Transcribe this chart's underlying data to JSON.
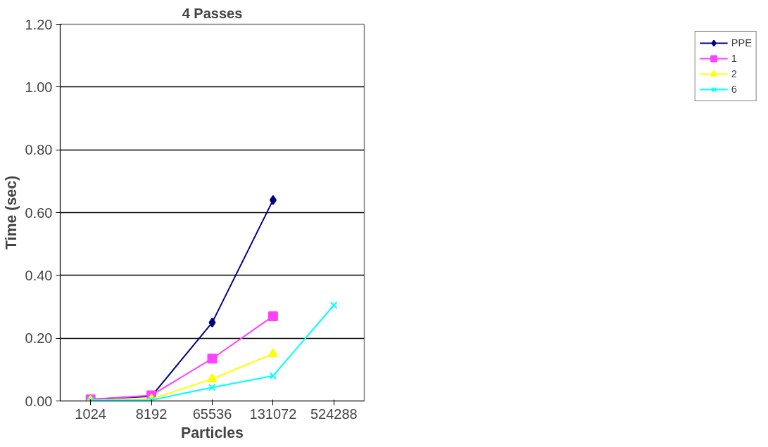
{
  "chart_data": {
    "type": "line",
    "title": "4 Passes",
    "xlabel": "Particles",
    "ylabel": "Time (sec)",
    "categories": [
      "1024",
      "8192",
      "65536",
      "131072",
      "524288"
    ],
    "series": [
      {
        "name": "PPE",
        "color": "#000080",
        "marker": "diamond",
        "values": [
          0.005,
          0.015,
          0.25,
          0.64,
          null
        ]
      },
      {
        "name": "1",
        "color": "#ff40ff",
        "marker": "square",
        "values": [
          0.005,
          0.018,
          0.135,
          0.27,
          null
        ]
      },
      {
        "name": "2",
        "color": "#ffff00",
        "marker": "triangle",
        "values": [
          0.002,
          0.006,
          0.07,
          0.15,
          null
        ]
      },
      {
        "name": "6",
        "color": "#00ffff",
        "marker": "cross",
        "values": [
          0.002,
          0.003,
          0.043,
          0.08,
          0.305
        ]
      }
    ],
    "ylim": [
      0,
      1.2
    ],
    "yticks": [
      {
        "value": 0,
        "label": "0.00"
      },
      {
        "value": 0.2,
        "label": "0.20"
      },
      {
        "value": 0.4,
        "label": "0.40"
      },
      {
        "value": 0.6,
        "label": "0.60"
      },
      {
        "value": 0.8,
        "label": "0.80"
      },
      {
        "value": 1.0,
        "label": "1.00"
      },
      {
        "value": 1.2,
        "label": "1.20"
      }
    ],
    "grid": "y",
    "legend": "right"
  }
}
